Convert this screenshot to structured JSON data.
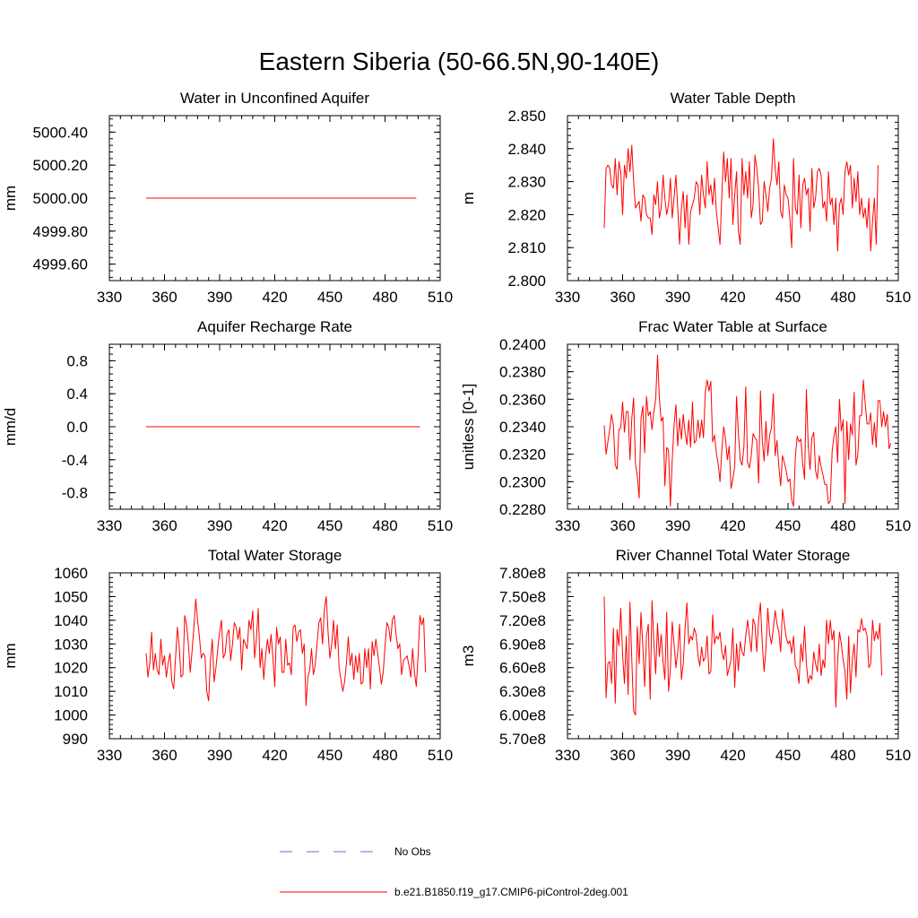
{
  "title": "Eastern Siberia (50-66.5N,90-140E)",
  "colors": {
    "series": "#ff0000",
    "obs": "#6b6bd6",
    "axis": "#000000"
  },
  "legend": {
    "placement": "bottom-center",
    "items": [
      {
        "label": "No Obs",
        "style": "dashed",
        "color": "#6b6bd6"
      },
      {
        "label": "b.e21.B1850.f19_g17.CMIP6-piControl-2deg.001",
        "style": "solid",
        "color": "#ff0000"
      }
    ]
  },
  "chart_data": [
    {
      "type": "line",
      "title": "Water in Unconfined Aquifer",
      "ylabel": "mm",
      "xlim": [
        330,
        510
      ],
      "ylim": [
        4999.5,
        5000.5
      ],
      "xticks": [
        330,
        360,
        390,
        420,
        450,
        480,
        510
      ],
      "yticks": [
        4999.6,
        4999.8,
        5000.0,
        5000.2,
        5000.4
      ],
      "ytick_labels": [
        "4999.60",
        "4999.80",
        "5000.00",
        "5000.20",
        "5000.40"
      ],
      "yminor": 5,
      "x_start": 350,
      "values": [
        5000,
        5000,
        5000,
        5000,
        5000,
        5000,
        5000,
        5000,
        5000,
        5000,
        5000,
        5000,
        5000,
        5000,
        5000,
        5000,
        5000,
        5000,
        5000,
        5000,
        5000,
        5000,
        5000,
        5000,
        5000,
        5000,
        5000,
        5000,
        5000,
        5000,
        5000,
        5000,
        5000,
        5000,
        5000,
        5000,
        5000,
        5000,
        5000,
        5000,
        5000,
        5000,
        5000,
        5000,
        5000,
        5000,
        5000,
        5000,
        5000,
        5000,
        5000,
        5000,
        5000,
        5000,
        5000,
        5000,
        5000,
        5000,
        5000,
        5000,
        5000,
        5000,
        5000,
        5000,
        5000,
        5000,
        5000,
        5000,
        5000,
        5000,
        5000,
        5000,
        5000,
        5000,
        5000,
        5000,
        5000,
        5000,
        5000,
        5000,
        5000,
        5000,
        5000,
        5000,
        5000,
        5000,
        5000,
        5000,
        5000,
        5000,
        5000,
        5000,
        5000,
        5000,
        5000,
        5000,
        5000,
        5000,
        5000,
        5000,
        5000,
        5000,
        5000,
        5000,
        5000,
        5000,
        5000,
        5000,
        5000,
        5000,
        5000,
        5000,
        5000,
        5000,
        5000,
        5000,
        5000,
        5000,
        5000,
        5000,
        5000,
        5000,
        5000,
        5000,
        5000,
        5000,
        5000,
        5000,
        5000,
        5000,
        5000,
        5000,
        5000,
        5000,
        5000,
        5000,
        5000,
        5000,
        5000,
        5000,
        5000,
        5000,
        5000,
        5000,
        5000,
        5000,
        5000,
        5000
      ]
    },
    {
      "type": "line",
      "title": "Water Table Depth",
      "ylabel": "m",
      "xlim": [
        330,
        510
      ],
      "ylim": [
        2.8,
        2.85
      ],
      "xticks": [
        330,
        360,
        390,
        420,
        450,
        480,
        510
      ],
      "yticks": [
        2.8,
        2.81,
        2.82,
        2.83,
        2.84,
        2.85
      ],
      "ytick_labels": [
        "2.800",
        "2.810",
        "2.820",
        "2.830",
        "2.840",
        "2.850"
      ],
      "yminor": 5,
      "x_start": 350,
      "values": [
        2.816,
        2.834,
        2.835,
        2.834,
        2.829,
        2.828,
        2.837,
        2.826,
        2.836,
        2.833,
        2.82,
        2.835,
        2.831,
        2.84,
        2.833,
        2.841,
        2.83,
        2.822,
        2.823,
        2.824,
        2.818,
        2.826,
        2.825,
        2.82,
        2.819,
        2.819,
        2.814,
        2.826,
        2.823,
        2.83,
        2.819,
        2.822,
        2.832,
        2.825,
        2.82,
        2.823,
        2.831,
        2.819,
        2.825,
        2.832,
        2.822,
        2.811,
        2.822,
        2.827,
        2.816,
        2.826,
        2.811,
        2.821,
        2.823,
        2.825,
        2.83,
        2.829,
        2.82,
        2.832,
        2.826,
        2.822,
        2.836,
        2.826,
        2.829,
        2.823,
        2.831,
        2.821,
        2.816,
        2.811,
        2.826,
        2.839,
        2.83,
        2.837,
        2.825,
        2.837,
        2.817,
        2.826,
        2.833,
        2.815,
        2.811,
        2.837,
        2.826,
        2.833,
        2.825,
        2.836,
        2.819,
        2.823,
        2.838,
        2.834,
        2.828,
        2.817,
        2.818,
        2.83,
        2.826,
        2.821,
        2.828,
        2.831,
        2.843,
        2.834,
        2.829,
        2.836,
        2.821,
        2.819,
        2.829,
        2.826,
        2.825,
        2.819,
        2.81,
        2.837,
        2.822,
        2.82,
        2.832,
        2.816,
        2.829,
        2.831,
        2.826,
        2.828,
        2.815,
        2.834,
        2.822,
        2.825,
        2.833,
        2.834,
        2.832,
        2.822,
        2.824,
        2.818,
        2.833,
        2.823,
        2.825,
        2.817,
        2.825,
        2.809,
        2.823,
        2.825,
        2.82,
        2.833,
        2.836,
        2.832,
        2.835,
        2.822,
        2.831,
        2.824,
        2.833,
        2.82,
        2.825,
        2.819,
        2.822,
        2.816,
        2.825,
        2.809,
        2.818,
        2.825,
        2.811,
        2.835
      ]
    },
    {
      "type": "line",
      "title": "Aquifer Recharge Rate",
      "ylabel": "mm/d",
      "xlim": [
        330,
        510
      ],
      "ylim": [
        -1,
        1
      ],
      "xticks": [
        330,
        360,
        390,
        420,
        450,
        480,
        510
      ],
      "yticks": [
        -0.8,
        -0.4,
        0.0,
        0.4,
        0.8
      ],
      "ytick_labels": [
        "-0.8",
        "-0.4",
        "0.0",
        "0.4",
        "0.8"
      ],
      "yminor": 5,
      "x_start": 350,
      "values": [
        0,
        0,
        0,
        0,
        0,
        0,
        0,
        0,
        0,
        0,
        0,
        0,
        0,
        0,
        0,
        0,
        0,
        0,
        0,
        0,
        0,
        0,
        0,
        0,
        0,
        0,
        0,
        0,
        0,
        0,
        0,
        0,
        0,
        0,
        0,
        0,
        0,
        0,
        0,
        0,
        0,
        0,
        0,
        0,
        0,
        0,
        0,
        0,
        0,
        0,
        0,
        0,
        0,
        0,
        0,
        0,
        0,
        0,
        0,
        0,
        0,
        0,
        0,
        0,
        0,
        0,
        0,
        0,
        0,
        0,
        0,
        0,
        0,
        0,
        0,
        0,
        0,
        0,
        0,
        0,
        0,
        0,
        0,
        0,
        0,
        0,
        0,
        0,
        0,
        0,
        0,
        0,
        0,
        0,
        0,
        0,
        0,
        0,
        0,
        0,
        0,
        0,
        0,
        0,
        0,
        0,
        0,
        0,
        0,
        0,
        0,
        0,
        0,
        0,
        0,
        0,
        0,
        0,
        0,
        0,
        0,
        0,
        0,
        0,
        0,
        0,
        0,
        0,
        0,
        0,
        0,
        0,
        0,
        0,
        0,
        0,
        0,
        0,
        0,
        0,
        0,
        0,
        0,
        0,
        0,
        0,
        0,
        0,
        0,
        0
      ]
    },
    {
      "type": "line",
      "title": "Frac Water Table at Surface",
      "ylabel": "unitless [0-1]",
      "xlim": [
        330,
        510
      ],
      "ylim": [
        0.228,
        0.24
      ],
      "xticks": [
        330,
        360,
        390,
        420,
        450,
        480,
        510
      ],
      "yticks": [
        0.228,
        0.23,
        0.232,
        0.234,
        0.236,
        0.238,
        0.24
      ],
      "ytick_labels": [
        "0.2280",
        "0.2300",
        "0.2320",
        "0.2340",
        "0.2360",
        "0.2380",
        "0.2400"
      ],
      "yminor": 5,
      "x_start": 350,
      "values": [
        0.2341,
        0.232,
        0.2329,
        0.2338,
        0.2349,
        0.2341,
        0.2312,
        0.2309,
        0.2338,
        0.2339,
        0.2358,
        0.2336,
        0.2351,
        0.2351,
        0.2316,
        0.2346,
        0.2361,
        0.2313,
        0.2304,
        0.2288,
        0.2346,
        0.2355,
        0.2321,
        0.2362,
        0.2348,
        0.2351,
        0.2338,
        0.2351,
        0.236,
        0.2392,
        0.2361,
        0.2344,
        0.2347,
        0.2297,
        0.2325,
        0.2323,
        0.2282,
        0.2316,
        0.2341,
        0.2356,
        0.2326,
        0.2346,
        0.2331,
        0.2349,
        0.2336,
        0.2327,
        0.2345,
        0.2325,
        0.2358,
        0.2328,
        0.233,
        0.2345,
        0.2332,
        0.2345,
        0.2332,
        0.2365,
        0.2374,
        0.2366,
        0.2373,
        0.2329,
        0.2334,
        0.2321,
        0.2313,
        0.23,
        0.2323,
        0.234,
        0.2331,
        0.2316,
        0.2326,
        0.2295,
        0.2302,
        0.2311,
        0.2362,
        0.2335,
        0.2316,
        0.2312,
        0.2325,
        0.2369,
        0.2314,
        0.231,
        0.2319,
        0.2335,
        0.2332,
        0.233,
        0.2299,
        0.2366,
        0.233,
        0.2315,
        0.2344,
        0.2319,
        0.2334,
        0.2339,
        0.2364,
        0.2319,
        0.233,
        0.2311,
        0.2297,
        0.2319,
        0.2314,
        0.2308,
        0.23,
        0.2302,
        0.2287,
        0.2282,
        0.2318,
        0.2333,
        0.2329,
        0.2331,
        0.2313,
        0.2302,
        0.2367,
        0.2326,
        0.2309,
        0.2332,
        0.2336,
        0.2308,
        0.2302,
        0.2319,
        0.2311,
        0.2305,
        0.2298,
        0.2298,
        0.2284,
        0.2286,
        0.2322,
        0.2333,
        0.234,
        0.2314,
        0.236,
        0.2337,
        0.2345,
        0.2284,
        0.2344,
        0.2316,
        0.2342,
        0.2334,
        0.2365,
        0.2312,
        0.232,
        0.2348,
        0.2348,
        0.2374,
        0.2357,
        0.2342,
        0.2342,
        0.235,
        0.2327,
        0.2343,
        0.2325,
        0.2359,
        0.2359,
        0.234,
        0.2351,
        0.234,
        0.2349,
        0.2324,
        0.2328
      ]
    },
    {
      "type": "line",
      "title": "Total Water Storage",
      "ylabel": "mm",
      "xlim": [
        330,
        510
      ],
      "ylim": [
        990,
        1060
      ],
      "xticks": [
        330,
        360,
        390,
        420,
        450,
        480,
        510
      ],
      "yticks": [
        990,
        1000,
        1010,
        1020,
        1030,
        1040,
        1050,
        1060
      ],
      "ytick_labels": [
        "990",
        "1000",
        "1010",
        "1020",
        "1030",
        "1040",
        "1050",
        "1060"
      ],
      "yminor": 5,
      "x_start": 350,
      "values": [
        1026,
        1016,
        1022,
        1035,
        1019,
        1026,
        1019,
        1017,
        1032,
        1021,
        1025,
        1016,
        1022,
        1026,
        1014,
        1011,
        1024,
        1037,
        1029,
        1016,
        1017,
        1042,
        1038,
        1030,
        1018,
        1027,
        1037,
        1049,
        1040,
        1033,
        1024,
        1026,
        1025,
        1010,
        1006,
        1023,
        1032,
        1014,
        1020,
        1028,
        1035,
        1040,
        1024,
        1026,
        1034,
        1036,
        1023,
        1030,
        1039,
        1037,
        1032,
        1037,
        1019,
        1032,
        1030,
        1028,
        1040,
        1036,
        1044,
        1024,
        1032,
        1045,
        1020,
        1028,
        1015,
        1025,
        1032,
        1026,
        1034,
        1024,
        1012,
        1037,
        1030,
        1033,
        1018,
        1018,
        1032,
        1021,
        1022,
        1017,
        1037,
        1038,
        1031,
        1035,
        1036,
        1026,
        1030,
        1004,
        1016,
        1019,
        1028,
        1017,
        1021,
        1030,
        1039,
        1041,
        1030,
        1045,
        1050,
        1035,
        1024,
        1030,
        1040,
        1028,
        1038,
        1020,
        1015,
        1010,
        1014,
        1022,
        1033,
        1021,
        1026,
        1015,
        1025,
        1018,
        1026,
        1013,
        1014,
        1028,
        1020,
        1028,
        1011,
        1031,
        1025,
        1032,
        1026,
        1020,
        1013,
        1018,
        1029,
        1039,
        1037,
        1031,
        1040,
        1042,
        1034,
        1028,
        1030,
        1017,
        1023,
        1024,
        1025,
        1021,
        1016,
        1028,
        1018,
        1012,
        1025,
        1042,
        1038,
        1041,
        1018
      ]
    },
    {
      "type": "line",
      "title": "River Channel Total Water Storage",
      "ylabel": "m3",
      "xlim": [
        330,
        510
      ],
      "ylim": [
        570000000,
        780000000
      ],
      "xticks": [
        330,
        360,
        390,
        420,
        450,
        480,
        510
      ],
      "yticks": [
        570000000,
        600000000,
        630000000,
        660000000,
        690000000,
        720000000,
        750000000,
        780000000
      ],
      "ytick_labels": [
        "5.70e8",
        "6.00e8",
        "6.30e8",
        "6.60e8",
        "6.90e8",
        "7.20e8",
        "7.50e8",
        "7.80e8"
      ],
      "yminor": 5,
      "x_start": 350,
      "values": [
        750000000,
        622000000,
        665000000,
        668000000,
        640000000,
        710000000,
        615000000,
        708000000,
        688000000,
        735000000,
        676000000,
        640000000,
        700000000,
        626000000,
        743000000,
        670000000,
        605000000,
        600000000,
        712000000,
        665000000,
        730000000,
        688000000,
        636000000,
        700000000,
        715000000,
        620000000,
        745000000,
        692000000,
        652000000,
        716000000,
        674000000,
        702000000,
        668000000,
        645000000,
        730000000,
        630000000,
        658000000,
        718000000,
        690000000,
        660000000,
        680000000,
        715000000,
        645000000,
        665000000,
        710000000,
        742000000,
        690000000,
        700000000,
        695000000,
        710000000,
        702000000,
        676000000,
        662000000,
        686000000,
        668000000,
        673000000,
        700000000,
        652000000,
        655000000,
        727000000,
        690000000,
        700000000,
        696000000,
        705000000,
        680000000,
        670000000,
        688000000,
        650000000,
        660000000,
        670000000,
        710000000,
        635000000,
        690000000,
        656000000,
        693000000,
        680000000,
        675000000,
        700000000,
        720000000,
        700000000,
        680000000,
        722000000,
        715000000,
        680000000,
        720000000,
        742000000,
        690000000,
        655000000,
        685000000,
        735000000,
        702000000,
        690000000,
        710000000,
        732000000,
        715000000,
        706000000,
        680000000,
        734000000,
        716000000,
        698000000,
        690000000,
        694000000,
        678000000,
        700000000,
        662000000,
        658000000,
        640000000,
        690000000,
        668000000,
        712000000,
        665000000,
        640000000,
        650000000,
        645000000,
        680000000,
        665000000,
        655000000,
        690000000,
        650000000,
        670000000,
        660000000,
        720000000,
        690000000,
        720000000,
        695000000,
        707000000,
        610000000,
        668000000,
        705000000,
        690000000,
        670000000,
        655000000,
        620000000,
        700000000,
        628000000,
        670000000,
        690000000,
        648000000,
        708000000,
        705000000,
        722000000,
        707000000,
        710000000,
        700000000,
        660000000,
        665000000,
        720000000,
        694000000,
        706000000,
        696000000,
        716000000,
        650000000
      ]
    }
  ]
}
